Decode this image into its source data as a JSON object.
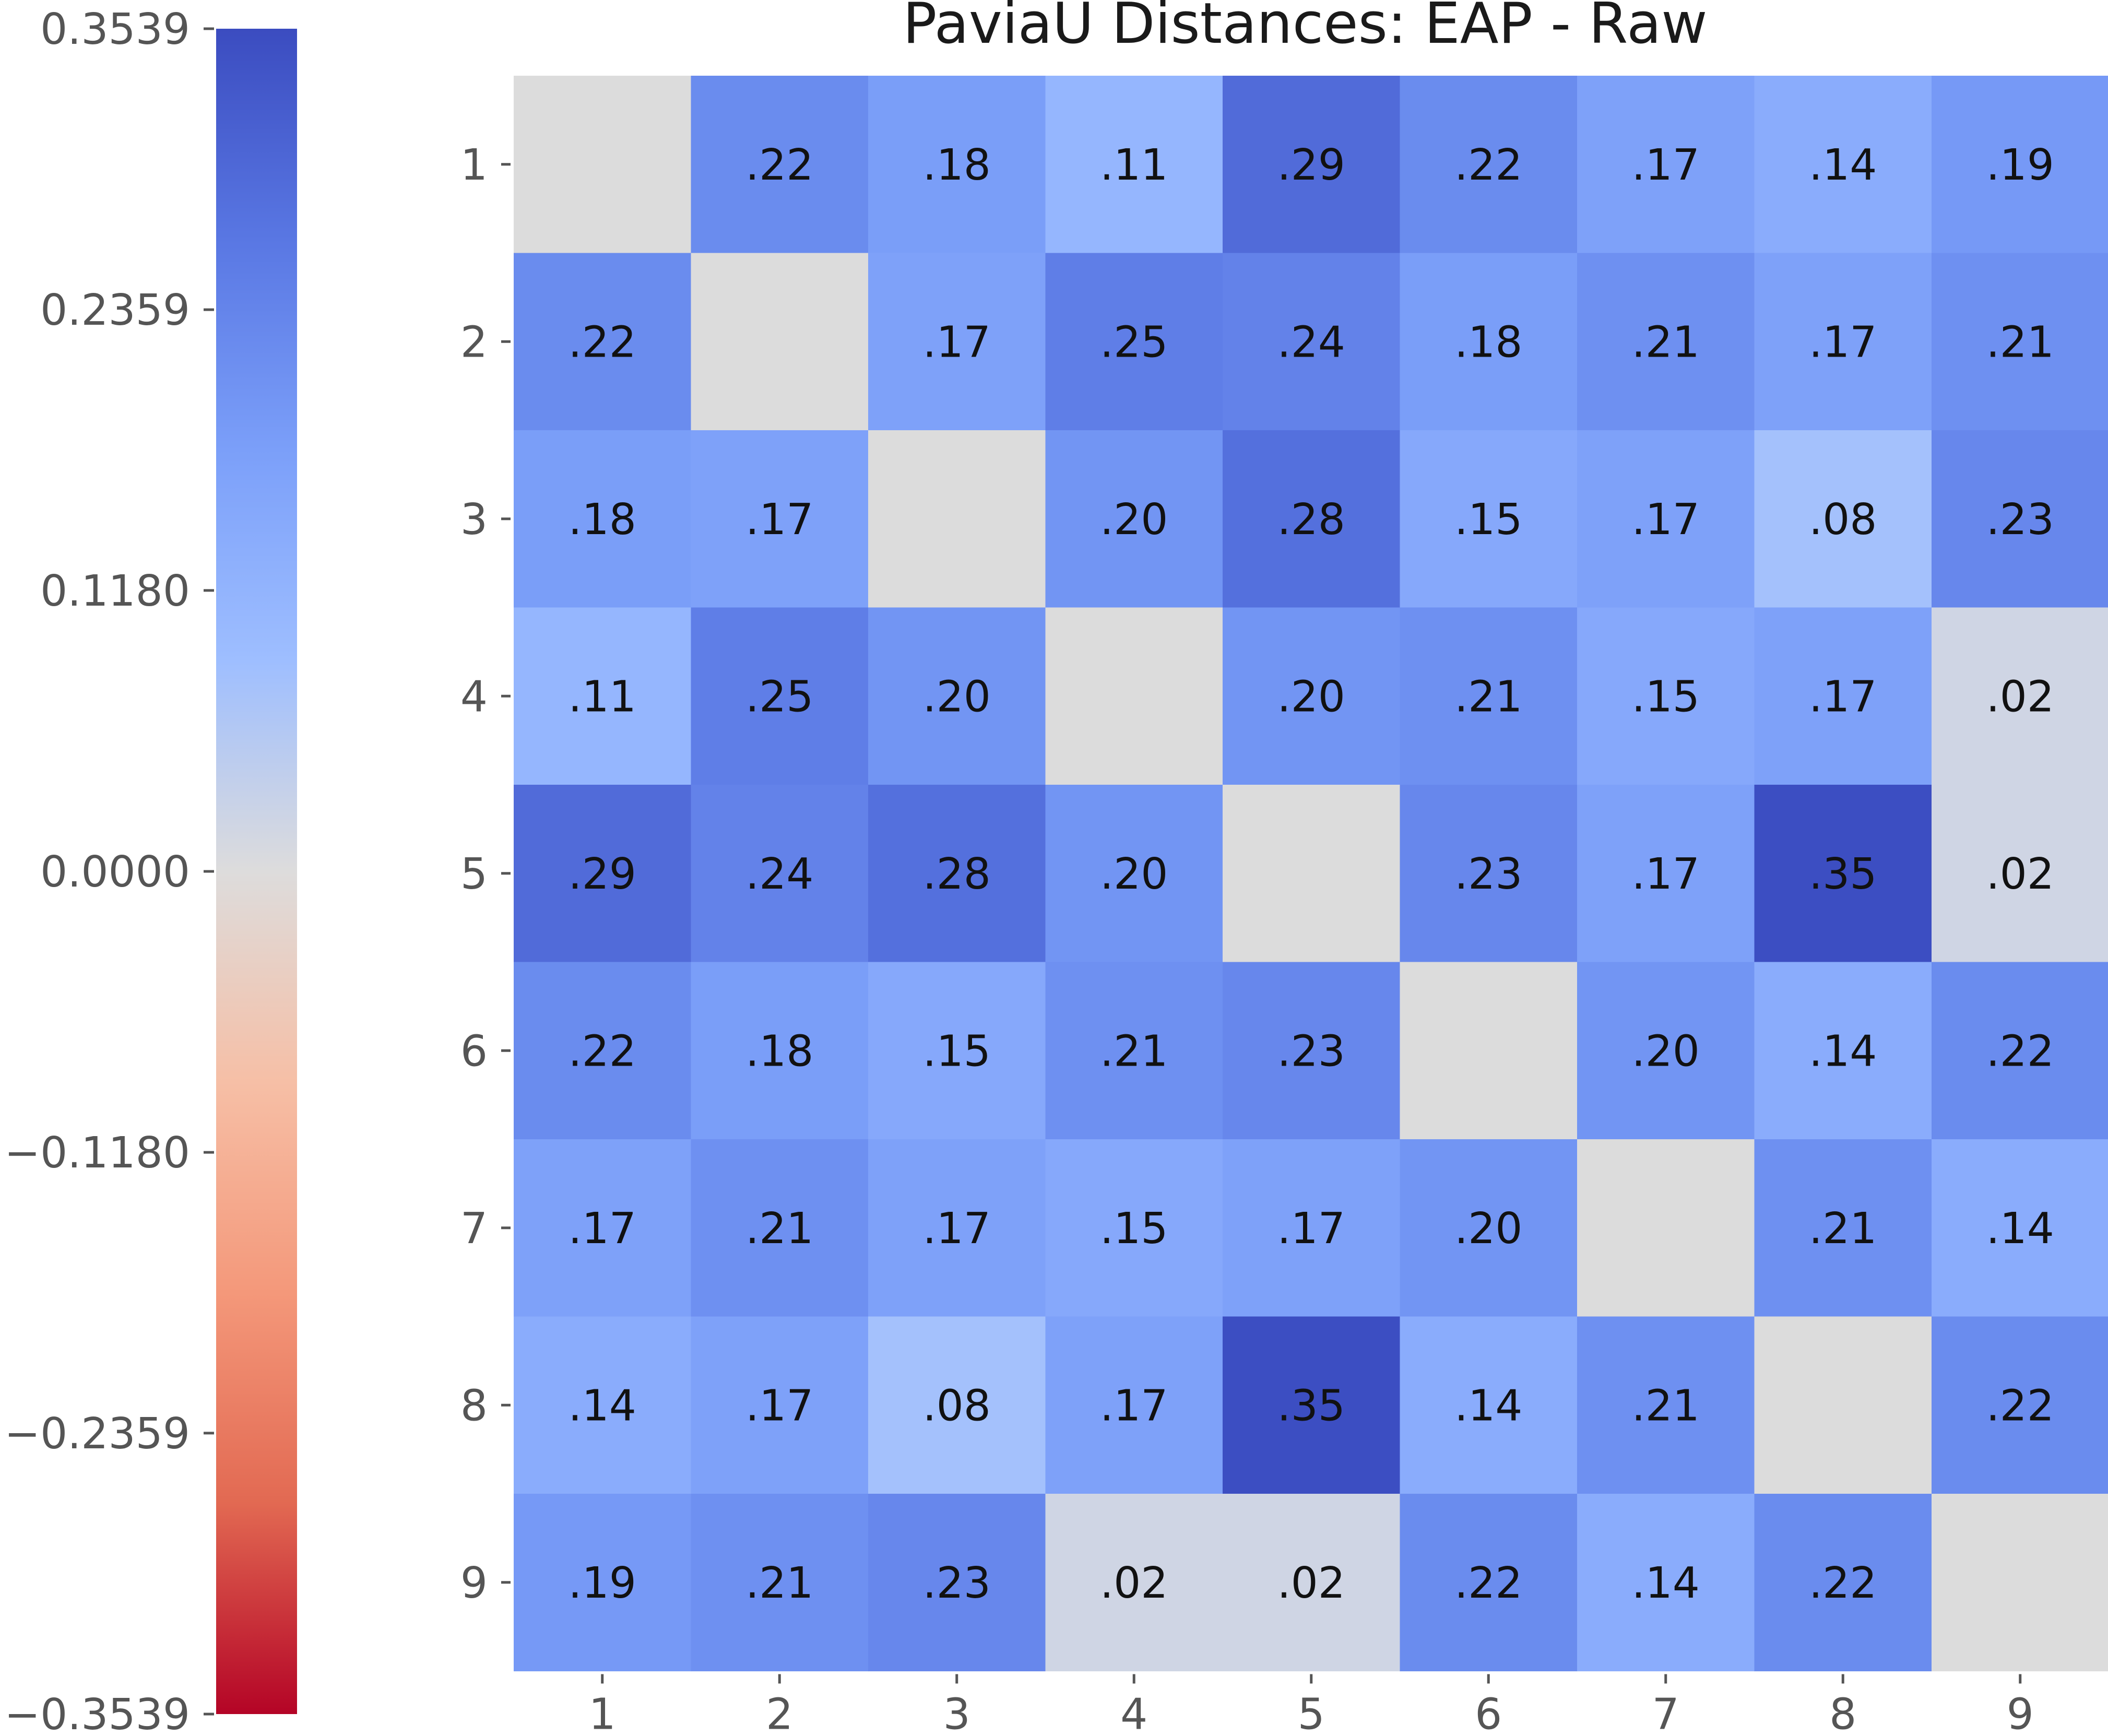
{
  "chart_data": {
    "type": "heatmap",
    "title": "PaviaU Distances: EAP - Raw",
    "xlabel": "",
    "ylabel": "",
    "x_categories": [
      "1",
      "2",
      "3",
      "4",
      "5",
      "6",
      "7",
      "8",
      "9"
    ],
    "y_categories": [
      "1",
      "2",
      "3",
      "4",
      "5",
      "6",
      "7",
      "8",
      "9"
    ],
    "values": [
      [
        null,
        0.22,
        0.18,
        0.11,
        0.29,
        0.22,
        0.17,
        0.14,
        0.19
      ],
      [
        0.22,
        null,
        0.17,
        0.25,
        0.24,
        0.18,
        0.21,
        0.17,
        0.21
      ],
      [
        0.18,
        0.17,
        null,
        0.2,
        0.28,
        0.15,
        0.17,
        0.08,
        0.23
      ],
      [
        0.11,
        0.25,
        0.2,
        null,
        0.2,
        0.21,
        0.15,
        0.17,
        0.02
      ],
      [
        0.29,
        0.24,
        0.28,
        0.2,
        null,
        0.23,
        0.17,
        0.35,
        0.02
      ],
      [
        0.22,
        0.18,
        0.15,
        0.21,
        0.23,
        null,
        0.2,
        0.14,
        0.22
      ],
      [
        0.17,
        0.21,
        0.17,
        0.15,
        0.17,
        0.2,
        null,
        0.21,
        0.14
      ],
      [
        0.14,
        0.17,
        0.08,
        0.17,
        0.35,
        0.14,
        0.21,
        null,
        0.22
      ],
      [
        0.19,
        0.21,
        0.23,
        0.02,
        0.02,
        0.22,
        0.14,
        0.22,
        null
      ]
    ],
    "cell_labels": [
      [
        "",
        ".22",
        ".18",
        ".11",
        ".29",
        ".22",
        ".17",
        ".14",
        ".19"
      ],
      [
        ".22",
        "",
        ".17",
        ".25",
        ".24",
        ".18",
        ".21",
        ".17",
        ".21"
      ],
      [
        ".18",
        ".17",
        "",
        ".20",
        ".28",
        ".15",
        ".17",
        ".08",
        ".23"
      ],
      [
        ".11",
        ".25",
        ".20",
        "",
        ".20",
        ".21",
        ".15",
        ".17",
        ".02"
      ],
      [
        ".29",
        ".24",
        ".28",
        ".20",
        "",
        ".23",
        ".17",
        ".35",
        ".02"
      ],
      [
        ".22",
        ".18",
        ".15",
        ".21",
        ".23",
        "",
        ".20",
        ".14",
        ".22"
      ],
      [
        ".17",
        ".21",
        ".17",
        ".15",
        ".17",
        ".20",
        "",
        ".21",
        ".14"
      ],
      [
        ".14",
        ".17",
        ".08",
        ".17",
        ".35",
        ".14",
        ".21",
        "",
        ".22"
      ],
      [
        ".19",
        ".21",
        ".23",
        ".02",
        ".02",
        ".22",
        ".14",
        ".22",
        ""
      ]
    ],
    "diagonal_color": "#dcdcdc",
    "colormap": "coolwarm (reversed)",
    "colorbar": {
      "range": [
        -0.3539,
        0.3539
      ],
      "ticks": [
        0.3539,
        0.2359,
        0.118,
        0.0,
        -0.118,
        -0.2359,
        -0.3539
      ],
      "tick_labels": [
        "0.3539",
        "0.2359",
        "0.1180",
        "0.0000",
        "−0.1180",
        "−0.2359",
        "−0.3539"
      ],
      "placement": "left"
    }
  }
}
